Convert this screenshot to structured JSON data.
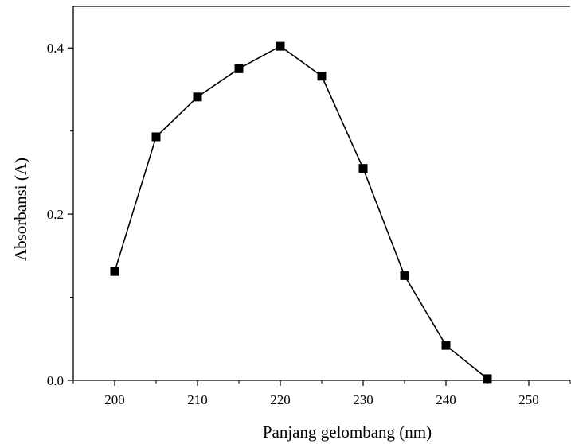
{
  "chart_data": {
    "type": "line",
    "title": "",
    "xlabel": "Panjang gelombang (nm)",
    "ylabel": "Absorbansi (A)",
    "xlim": [
      195,
      255
    ],
    "ylim": [
      0.0,
      0.45
    ],
    "x_ticks": [
      200,
      210,
      220,
      230,
      240,
      250
    ],
    "x_tick_labels": [
      "200",
      "210",
      "220",
      "230",
      "240",
      "250"
    ],
    "y_ticks": [
      0.0,
      0.2,
      0.4
    ],
    "y_tick_labels": [
      "0.0",
      "0.2",
      "0.4"
    ],
    "marker": "square",
    "grid": false,
    "legend": "none",
    "colors": {
      "line": "#000000",
      "marker": "#000000",
      "axis": "#000000"
    },
    "series": [
      {
        "x": [
          200,
          205,
          210,
          215,
          220,
          225,
          230,
          235,
          240,
          245
        ],
        "y": [
          0.131,
          0.293,
          0.341,
          0.375,
          0.402,
          0.366,
          0.255,
          0.126,
          0.042,
          0.002
        ]
      }
    ]
  }
}
